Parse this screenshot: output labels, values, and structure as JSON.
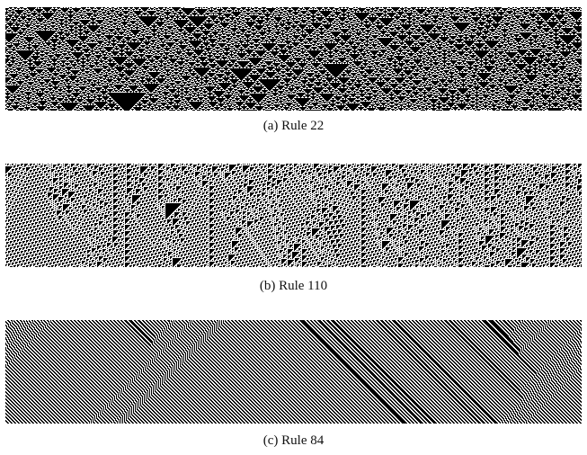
{
  "figures": [
    {
      "caption": "(a) Rule 22"
    },
    {
      "caption": "(b) Rule 110"
    },
    {
      "caption": "(c) Rule 84"
    }
  ]
}
